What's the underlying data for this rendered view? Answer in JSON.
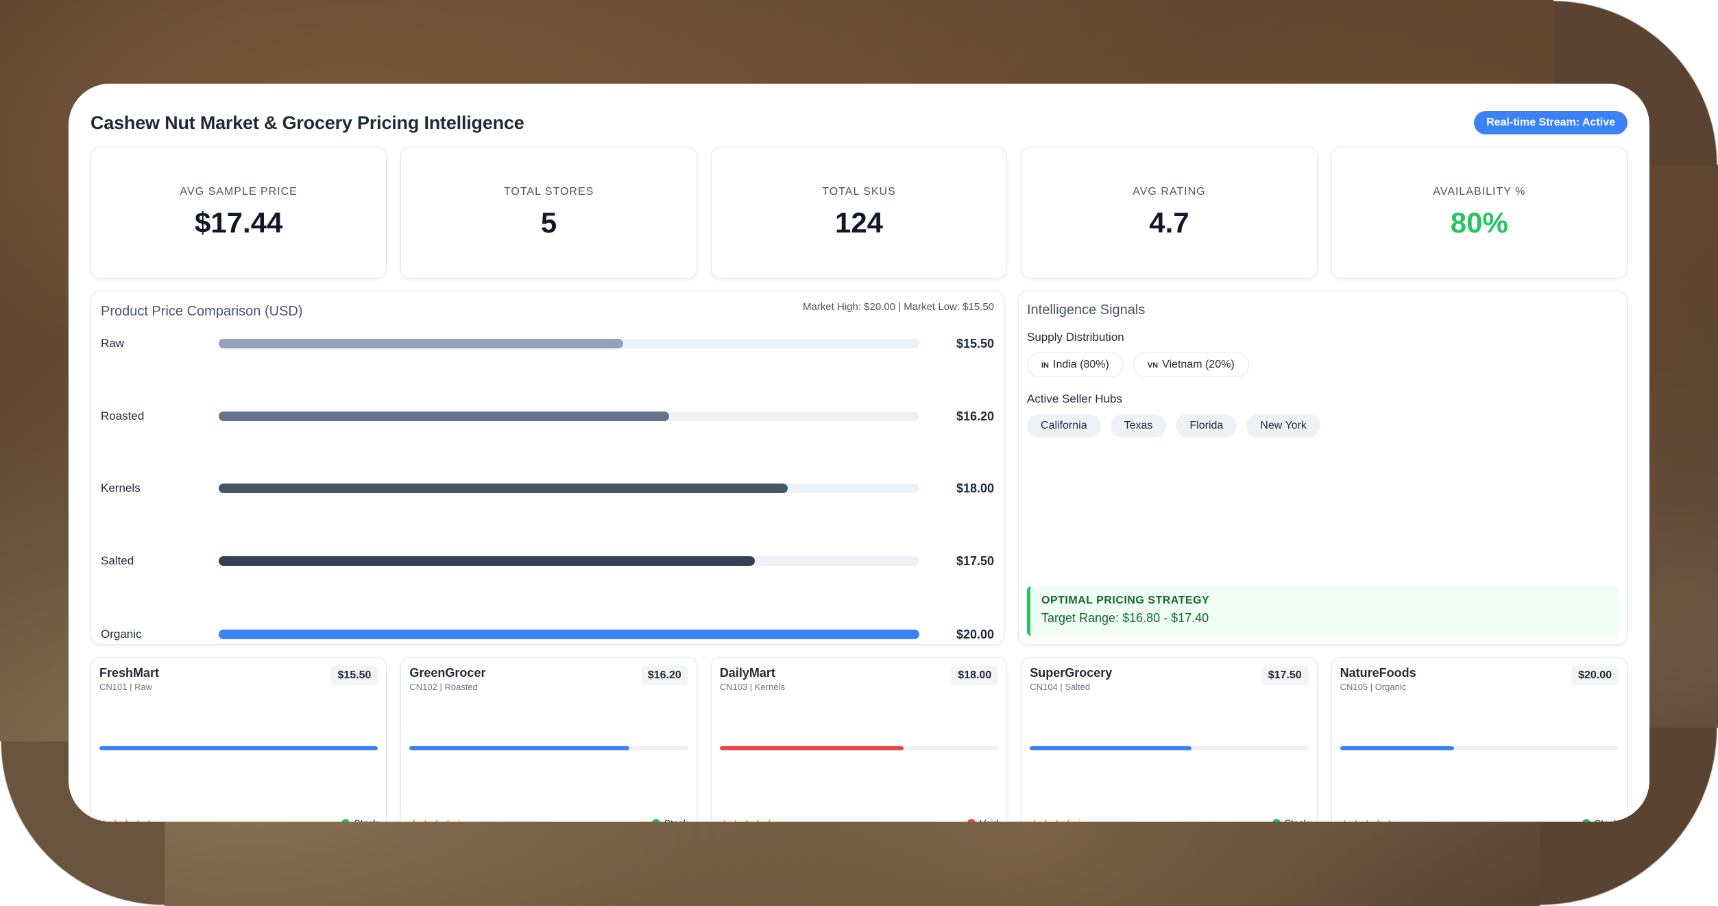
{
  "header": {
    "title": "Cashew Nut Market & Grocery Pricing Intelligence",
    "stream_badge": "Real-time Stream: Active"
  },
  "kpis": [
    {
      "label": "AVG SAMPLE PRICE",
      "value": "$17.44"
    },
    {
      "label": "TOTAL STORES",
      "value": "5"
    },
    {
      "label": "TOTAL SKUS",
      "value": "124"
    },
    {
      "label": "AVG RATING",
      "value": "4.7"
    },
    {
      "label": "AVAILABILITY %",
      "value": "80%",
      "color": "#22c55e"
    }
  ],
  "chart_data": {
    "type": "bar",
    "title": "Product Price Comparison (USD)",
    "subtitle": "Market High: $20.00 | Market Low: $15.50",
    "categories": [
      "Raw",
      "Roasted",
      "Kernels",
      "Salted",
      "Organic"
    ],
    "values": [
      15.5,
      16.2,
      18.0,
      17.5,
      20.0
    ],
    "value_labels": [
      "$15.50",
      "$16.20",
      "$18.00",
      "$17.50",
      "$20.00"
    ],
    "colors": [
      "#94a3b8",
      "#64748b",
      "#475569",
      "#334155",
      "#3b82f6"
    ],
    "xlim": [
      0,
      20
    ]
  },
  "signals": {
    "title": "Intelligence Signals",
    "supply_label": "Supply Distribution",
    "supply": [
      {
        "flag": "IN",
        "label": "India (80%)"
      },
      {
        "flag": "VN",
        "label": "Vietnam (20%)"
      }
    ],
    "hubs_label": "Active Seller Hubs",
    "hubs": [
      "California",
      "Texas",
      "Florida",
      "New York"
    ],
    "strategy_title": "OPTIMAL PRICING STRATEGY",
    "strategy_range": "Target Range: $16.80 - $17.40"
  },
  "stores": [
    {
      "name": "FreshMart",
      "meta": "CN101 | Raw",
      "price": "$15.50",
      "bar": 1.0,
      "bar_color": "#3b82f6",
      "stars": "★★★★★",
      "status": "Stock",
      "status_color": "#22c55e"
    },
    {
      "name": "GreenGrocer",
      "meta": "CN102 | Roasted",
      "price": "$16.20",
      "bar": 0.79,
      "bar_color": "#3b82f6",
      "stars": "★★★★☆",
      "status": "Stock",
      "status_color": "#22c55e"
    },
    {
      "name": "DailyMart",
      "meta": "CN103 | Kernels",
      "price": "$18.00",
      "bar": 0.66,
      "bar_color": "#ef4444",
      "stars": "★★★★★",
      "status": "Void",
      "status_color": "#ef4444"
    },
    {
      "name": "SuperGrocery",
      "meta": "CN104 | Salted",
      "price": "$17.50",
      "bar": 0.58,
      "bar_color": "#3b82f6",
      "stars": "★★★★☆",
      "status": "Stock",
      "status_color": "#22c55e"
    },
    {
      "name": "NatureFoods",
      "meta": "CN105 | Organic",
      "price": "$20.00",
      "bar": 0.41,
      "bar_color": "#3b82f6",
      "stars": "★★★★★",
      "status": "Stock",
      "status_color": "#22c55e"
    }
  ]
}
